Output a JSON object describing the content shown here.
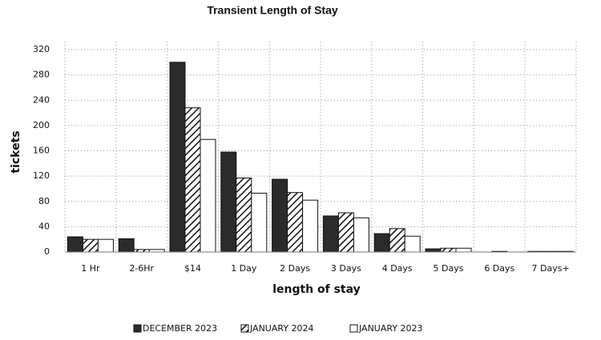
{
  "chart_data": {
    "type": "bar",
    "title": "Transient Length of Stay",
    "x_label": "length of stay",
    "y_label": "tickets",
    "categories": [
      "1 Hr",
      "2-6Hr",
      "$14",
      "1 Day",
      "2 Days",
      "3 Days",
      "4 Days",
      "5 Days",
      "6 Days",
      "7 Days+"
    ],
    "series": [
      {
        "name": "DECEMBER 2023",
        "color": "#2b2b2b",
        "values": [
          24,
          21,
          300,
          158,
          115,
          57,
          29,
          5,
          0,
          1
        ]
      },
      {
        "name": "JANUARY 2024",
        "color": "#ffffff",
        "hatch": true,
        "values": [
          20,
          4,
          228,
          117,
          94,
          62,
          37,
          6,
          1,
          1
        ]
      },
      {
        "name": "JANUARY 2023",
        "color": "#ffffff",
        "values": [
          20,
          4,
          178,
          93,
          82,
          54,
          25,
          6,
          0,
          1
        ]
      }
    ],
    "ylim": [
      0,
      320
    ],
    "yticks": [
      0,
      40,
      80,
      120,
      160,
      200,
      240,
      280,
      320
    ],
    "grid": true,
    "legend": "bottom"
  }
}
